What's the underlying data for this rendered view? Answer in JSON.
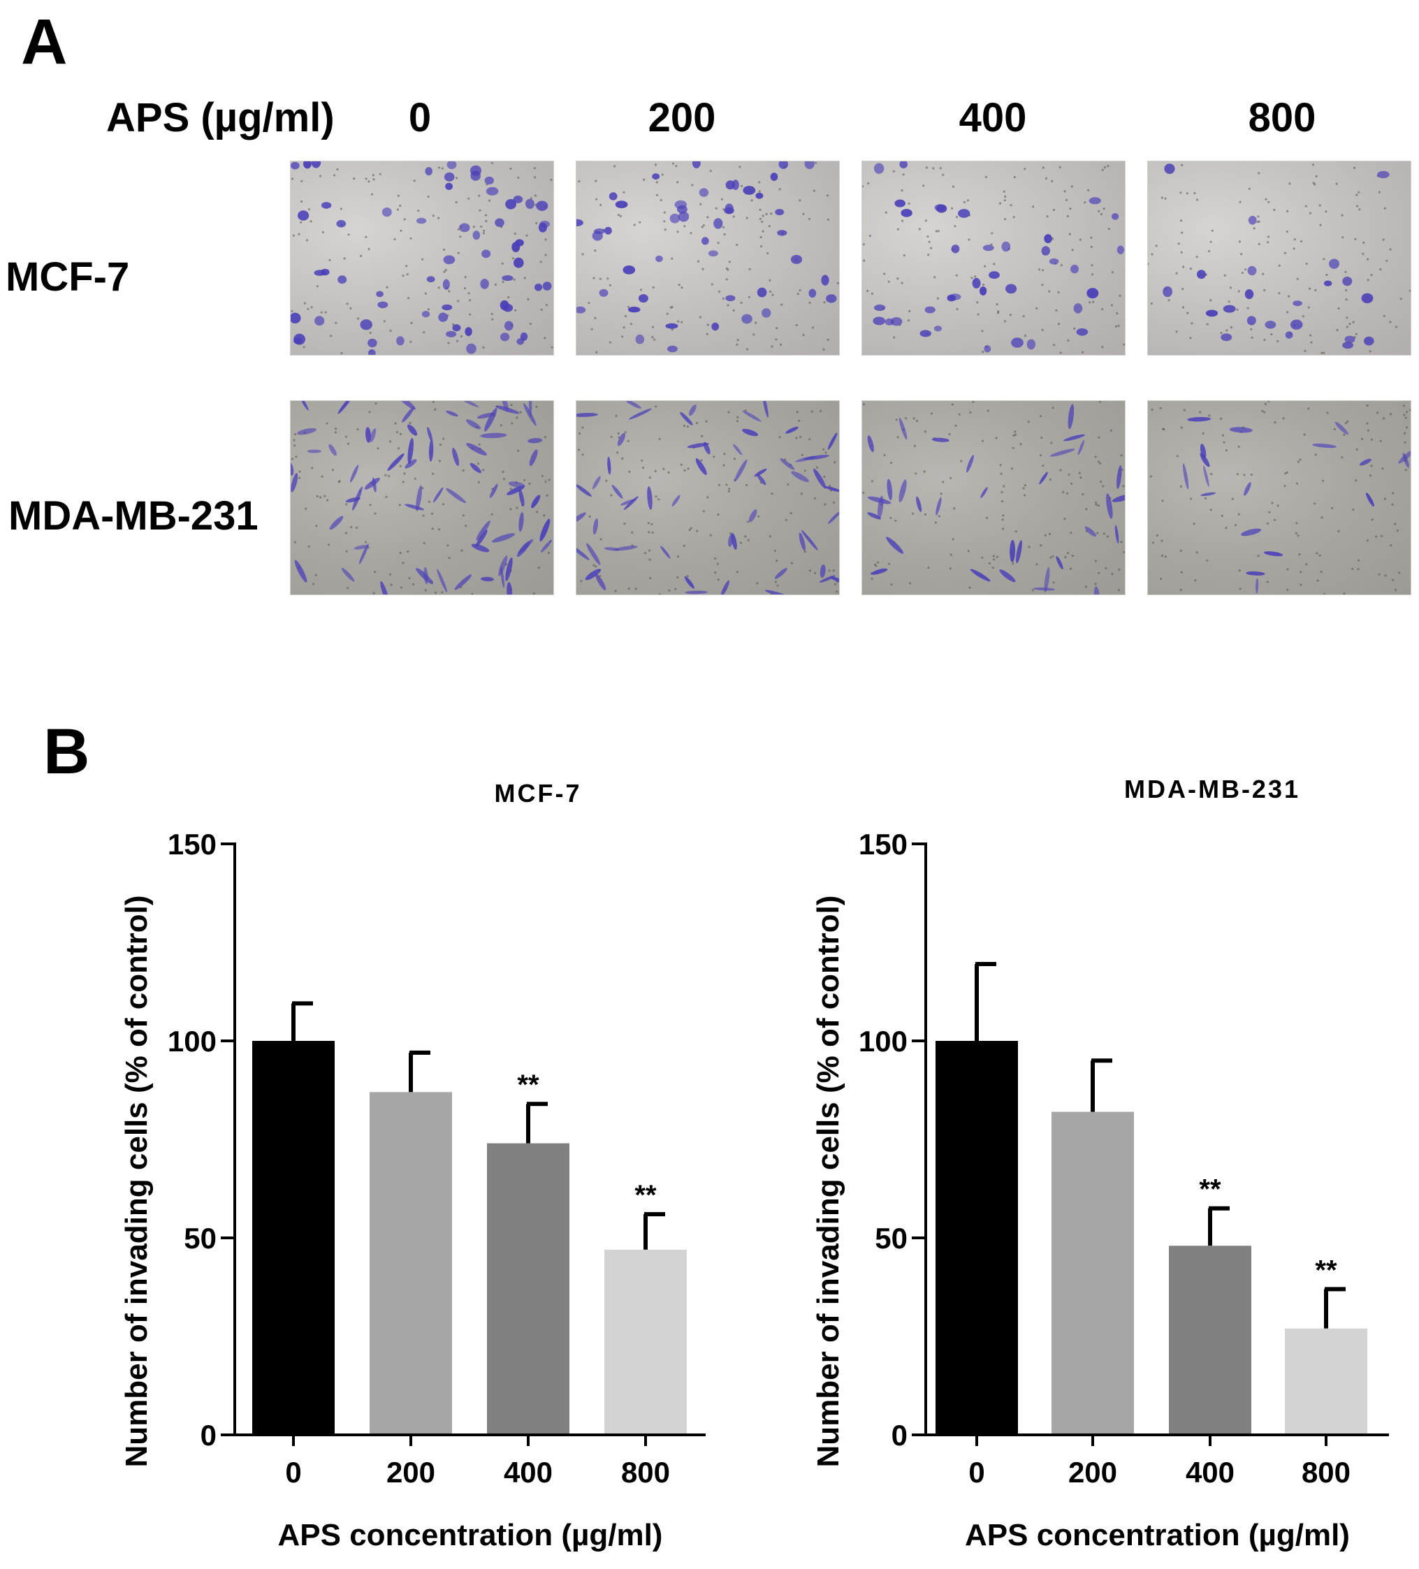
{
  "panel_a": {
    "label": "A",
    "treatment_label": "APS (µg/ml)",
    "concentrations": [
      "0",
      "200",
      "400",
      "800"
    ],
    "rows": [
      {
        "label": "MCF-7",
        "cell_shape": "round"
      },
      {
        "label": "MDA-MB-231",
        "cell_shape": "spindle"
      }
    ],
    "stain_color": "#4a3fb8"
  },
  "panel_b": {
    "label": "B"
  },
  "chart_data": [
    {
      "type": "bar",
      "title": "MCF-7",
      "categories": [
        "0",
        "200",
        "400",
        "800"
      ],
      "values": [
        100,
        87,
        74,
        47
      ],
      "errors": [
        9.5,
        10,
        10,
        9
      ],
      "significance": [
        "",
        "",
        "**",
        "**"
      ],
      "colors": [
        "#000000",
        "#a6a6a6",
        "#808080",
        "#d3d3d3"
      ],
      "xlabel": "APS concentration (µg/ml)",
      "ylabel": "Number of invading cells (% of control)",
      "ylim": [
        0,
        150
      ],
      "yticks": [
        0,
        50,
        100,
        150
      ]
    },
    {
      "type": "bar",
      "title": "MDA-MB-231",
      "categories": [
        "0",
        "200",
        "400",
        "800"
      ],
      "values": [
        100,
        82,
        48,
        27
      ],
      "errors": [
        19.5,
        13,
        9.5,
        10
      ],
      "significance": [
        "",
        "",
        "**",
        "**"
      ],
      "colors": [
        "#000000",
        "#a6a6a6",
        "#808080",
        "#d3d3d3"
      ],
      "xlabel": "APS concentration (µg/ml)",
      "ylabel": "Number of invading cells (% of control)",
      "ylim": [
        0,
        150
      ],
      "yticks": [
        0,
        50,
        100,
        150
      ]
    }
  ]
}
